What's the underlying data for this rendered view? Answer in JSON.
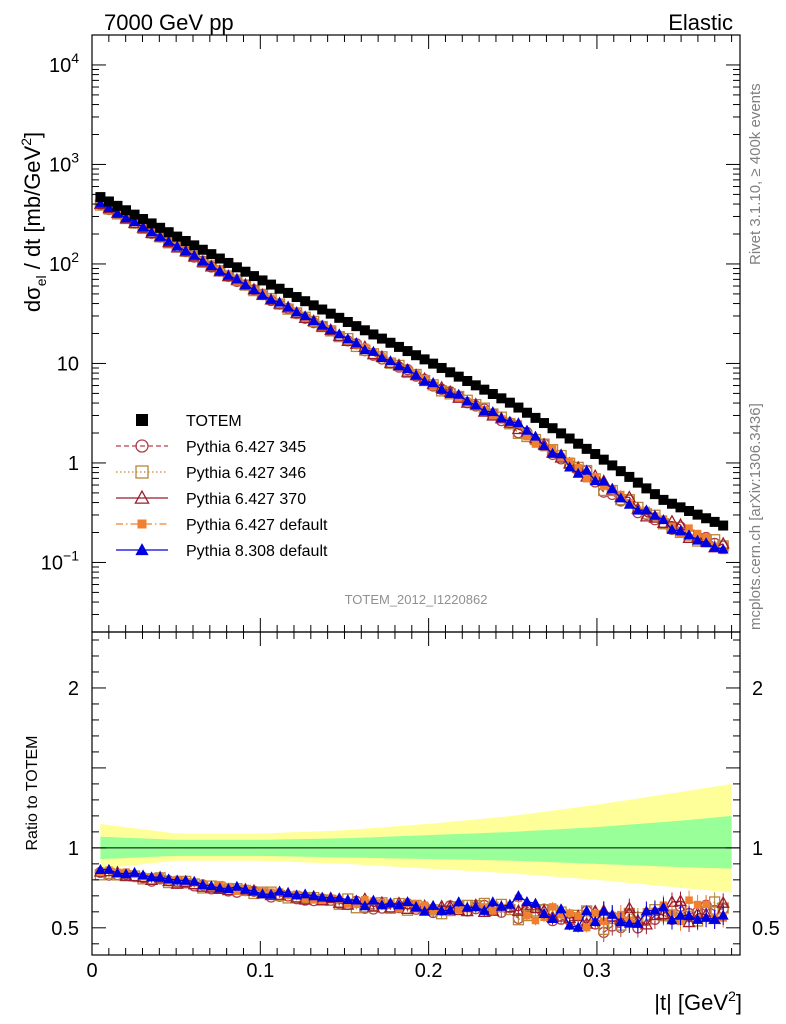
{
  "header": {
    "left": "7000 GeV pp",
    "right": "Elastic"
  },
  "side_labels": {
    "rivet": "Rivet 3.1.10, ≥ 400k events",
    "mcplots": "mcplots.cern.ch [arXiv:1306.3436]"
  },
  "analysis_label": "TOTEM_2012_I1220862",
  "chart_data": {
    "type": "scatter",
    "main": {
      "ylabel": "dσ_el / dt [mb/GeV^2]",
      "yscale": "log",
      "ylim": [
        0.02,
        20000
      ],
      "yticks": [
        "10^4",
        "10^3",
        "10^2",
        "10",
        "1",
        "10^-1"
      ]
    },
    "ratio": {
      "ylabel": "Ratio to TOTEM",
      "ylim": [
        0.33,
        2.35
      ],
      "yticks": [
        2,
        1,
        0.5
      ]
    },
    "xlabel": "|t| [GeV^2]",
    "xlim": [
      0,
      0.385
    ],
    "xticks": [
      0,
      0.1,
      0.2,
      0.3
    ],
    "legend_placement": "bottom-left",
    "series": [
      {
        "name": "TOTEM",
        "color": "#000000",
        "marker": "square-filled",
        "style": "none"
      },
      {
        "name": "Pythia 6.427 345",
        "color": "#b0404a",
        "marker": "circle-open",
        "style": "dashed"
      },
      {
        "name": "Pythia 6.427 346",
        "color": "#b8863c",
        "marker": "square-open",
        "style": "dotted"
      },
      {
        "name": "Pythia 6.427 370",
        "color": "#9b1b2a",
        "marker": "triangle-open",
        "style": "solid"
      },
      {
        "name": "Pythia 6.427 default",
        "color": "#f08030",
        "marker": "square-filled-small",
        "style": "dashdot"
      },
      {
        "name": "Pythia 8.308 default",
        "color": "#0000e0",
        "marker": "triangle-filled",
        "style": "solid"
      }
    ],
    "totem": {
      "x_start": 0.005,
      "x_end": 0.375,
      "y_start": 470,
      "y_end": 0.235,
      "values_at": [
        {
          "x": 0.005,
          "y": 470
        },
        {
          "x": 0.1,
          "y": 70
        },
        {
          "x": 0.2,
          "y": 10.5
        },
        {
          "x": 0.25,
          "y": 3.9
        },
        {
          "x": 0.3,
          "y": 1.2
        },
        {
          "x": 0.34,
          "y": 0.42
        },
        {
          "x": 0.375,
          "y": 0.235
        }
      ]
    },
    "ratio_values": {
      "x_anchor": [
        0.005,
        0.05,
        0.1,
        0.15,
        0.2,
        0.25,
        0.3,
        0.34,
        0.375
      ],
      "mc_mean": [
        0.85,
        0.79,
        0.72,
        0.66,
        0.62,
        0.63,
        0.54,
        0.6,
        0.6
      ]
    },
    "band": {
      "x": [
        0.005,
        0.05,
        0.1,
        0.15,
        0.2,
        0.25,
        0.3,
        0.35,
        0.38
      ],
      "stat_lo": [
        0.93,
        0.95,
        0.95,
        0.94,
        0.93,
        0.92,
        0.9,
        0.88,
        0.87
      ],
      "stat_hi": [
        1.07,
        1.05,
        1.05,
        1.06,
        1.08,
        1.1,
        1.13,
        1.17,
        1.2
      ],
      "tot_lo": [
        0.87,
        0.92,
        0.92,
        0.9,
        0.87,
        0.84,
        0.8,
        0.75,
        0.72
      ],
      "tot_hi": [
        1.15,
        1.09,
        1.09,
        1.11,
        1.15,
        1.2,
        1.27,
        1.35,
        1.4
      ]
    }
  }
}
